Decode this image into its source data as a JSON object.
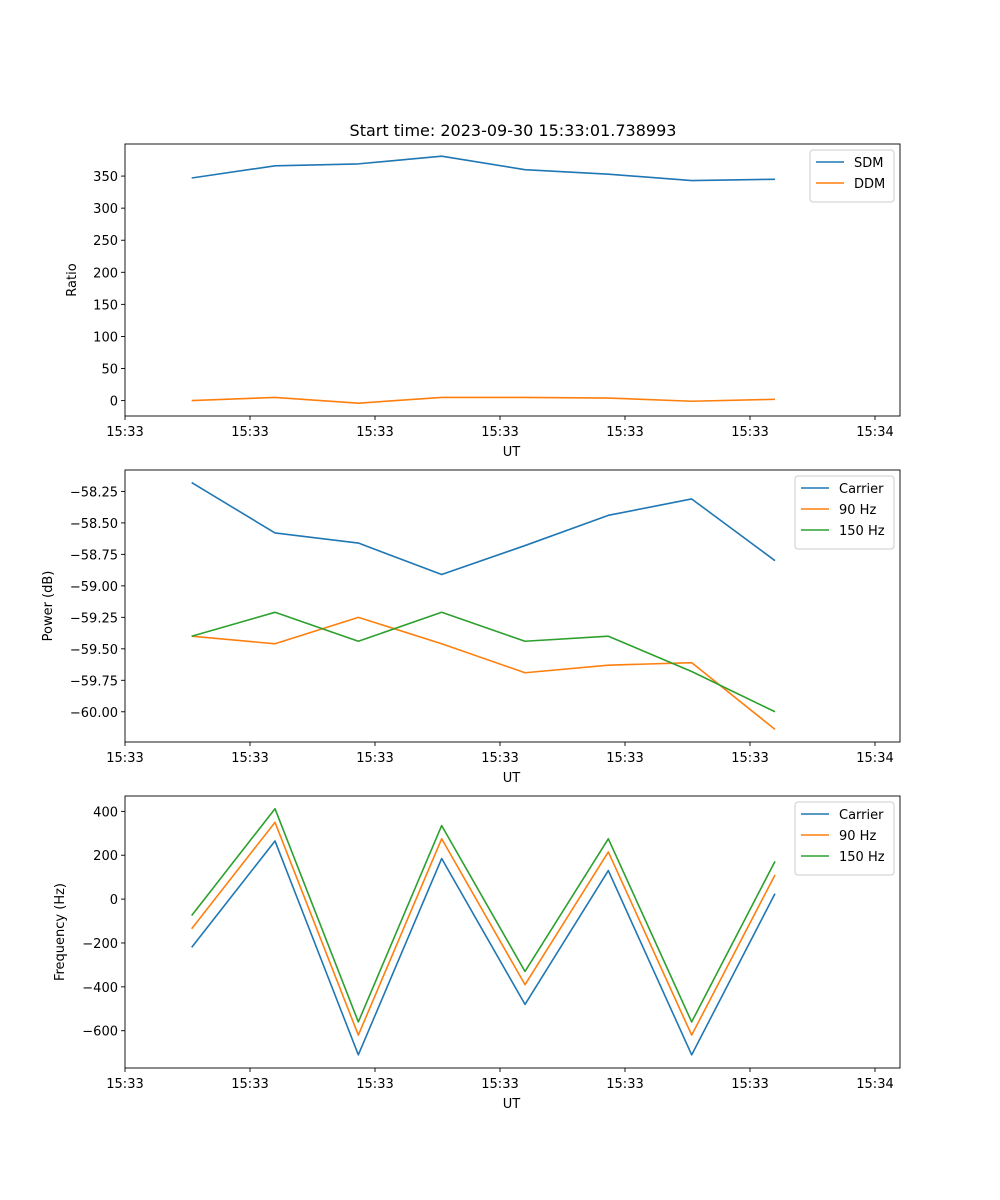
{
  "title": "Start time: 2023-09-30 15:33:01.738993",
  "colors": {
    "blue": "#1f77b4",
    "orange": "#ff7f0e",
    "green": "#2ca02c"
  },
  "chart_data": [
    {
      "type": "line",
      "ylabel": "Ratio",
      "xlabel": "UT",
      "legend_position": "top-right",
      "x": [
        1,
        2,
        3,
        4,
        5,
        6,
        7,
        8
      ],
      "xlim": [
        0.2,
        9.5
      ],
      "xticks": [
        0.2,
        1.7,
        3.2,
        4.7,
        6.2,
        7.7,
        9.2
      ],
      "xticklabels": [
        "15:33",
        "15:33",
        "15:33",
        "15:33",
        "15:33",
        "15:33",
        "15:34"
      ],
      "ylim": [
        -24,
        400
      ],
      "yticks": [
        0,
        50,
        100,
        150,
        200,
        250,
        300,
        350
      ],
      "yticklabels": [
        "0",
        "50",
        "100",
        "150",
        "200",
        "250",
        "300",
        "350"
      ],
      "series": [
        {
          "name": "SDM",
          "color": "#1f77b4",
          "values": [
            347,
            366,
            369,
            381,
            360,
            353,
            343,
            345
          ]
        },
        {
          "name": "DDM",
          "color": "#ff7f0e",
          "values": [
            0,
            5,
            -4,
            5,
            5,
            4,
            -1,
            2
          ]
        }
      ]
    },
    {
      "type": "line",
      "ylabel": "Power (dB)",
      "xlabel": "UT",
      "legend_position": "top-right",
      "x": [
        1,
        2,
        3,
        4,
        5,
        6,
        7,
        8
      ],
      "xlim": [
        0.2,
        9.5
      ],
      "xticks": [
        0.2,
        1.7,
        3.2,
        4.7,
        6.2,
        7.7,
        9.2
      ],
      "xticklabels": [
        "15:33",
        "15:33",
        "15:33",
        "15:33",
        "15:33",
        "15:33",
        "15:34"
      ],
      "ylim": [
        -60.24,
        -58.08
      ],
      "yticks": [
        -60.0,
        -59.75,
        -59.5,
        -59.25,
        -59.0,
        -58.75,
        -58.5,
        -58.25
      ],
      "yticklabels": [
        "−60.00",
        "−59.75",
        "−59.50",
        "−59.25",
        "−59.00",
        "−58.75",
        "−58.50",
        "−58.25"
      ],
      "series": [
        {
          "name": "Carrier",
          "color": "#1f77b4",
          "values": [
            -58.18,
            -58.58,
            -58.66,
            -58.91,
            -58.68,
            -58.44,
            -58.31,
            -58.8
          ]
        },
        {
          "name": "90 Hz",
          "color": "#ff7f0e",
          "values": [
            -59.4,
            -59.46,
            -59.25,
            -59.46,
            -59.69,
            -59.63,
            -59.61,
            -60.14
          ]
        },
        {
          "name": "150 Hz",
          "color": "#2ca02c",
          "values": [
            -59.4,
            -59.21,
            -59.44,
            -59.21,
            -59.44,
            -59.4,
            -59.68,
            -60.0
          ]
        }
      ]
    },
    {
      "type": "line",
      "ylabel": "Frequency (Hz)",
      "xlabel": "UT",
      "legend_position": "top-right",
      "x": [
        1,
        2,
        3,
        4,
        5,
        6,
        7,
        8
      ],
      "xlim": [
        0.2,
        9.5
      ],
      "xticks": [
        0.2,
        1.7,
        3.2,
        4.7,
        6.2,
        7.7,
        9.2
      ],
      "xticklabels": [
        "15:33",
        "15:33",
        "15:33",
        "15:33",
        "15:33",
        "15:33",
        "15:34"
      ],
      "ylim": [
        -770,
        470
      ],
      "yticks": [
        -600,
        -400,
        -200,
        0,
        200,
        400
      ],
      "yticklabels": [
        "−600",
        "−400",
        "−200",
        "0",
        "200",
        "400"
      ],
      "series": [
        {
          "name": "Carrier",
          "color": "#1f77b4",
          "values": [
            -220,
            265,
            -710,
            185,
            -480,
            130,
            -710,
            25
          ]
        },
        {
          "name": "90 Hz",
          "color": "#ff7f0e",
          "values": [
            -135,
            350,
            -620,
            275,
            -390,
            215,
            -620,
            110
          ]
        },
        {
          "name": "150 Hz",
          "color": "#2ca02c",
          "values": [
            -75,
            412,
            -560,
            335,
            -330,
            275,
            -560,
            172
          ]
        }
      ]
    }
  ]
}
